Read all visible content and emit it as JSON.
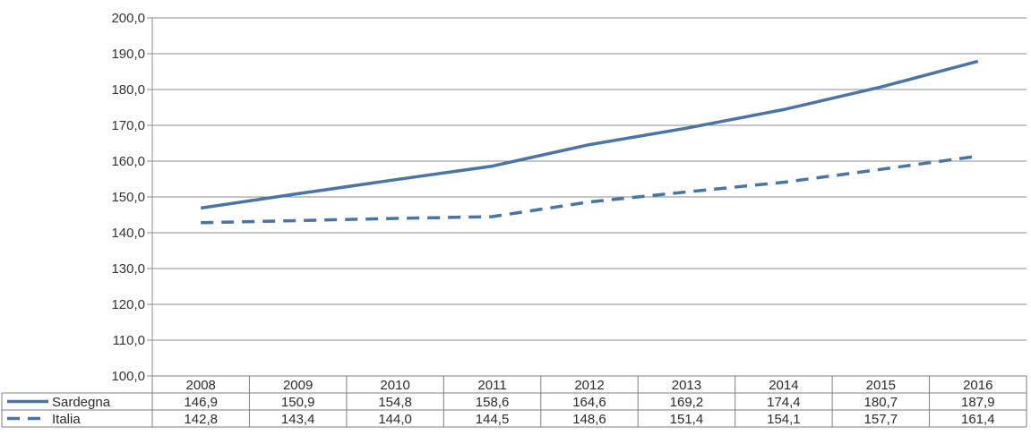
{
  "chart_data": {
    "type": "line",
    "x": [
      "2008",
      "2009",
      "2010",
      "2011",
      "2012",
      "2013",
      "2014",
      "2015",
      "2016"
    ],
    "ylim": [
      100,
      200
    ],
    "yticks": [
      "100,0",
      "110,0",
      "120,0",
      "130,0",
      "140,0",
      "150,0",
      "160,0",
      "170,0",
      "180,0",
      "190,0",
      "200,0"
    ],
    "grid": true,
    "legend_placement": "bottom data table",
    "series": [
      {
        "name": "Sardegna",
        "style": "solid",
        "color": "#4a74a3",
        "values": [
          146.9,
          150.9,
          154.8,
          158.6,
          164.6,
          169.2,
          174.4,
          180.7,
          187.9
        ],
        "labels": [
          "146,9",
          "150,9",
          "154,8",
          "158,6",
          "164,6",
          "169,2",
          "174,4",
          "180,7",
          "187,9"
        ]
      },
      {
        "name": "Italia",
        "style": "dashed",
        "color": "#4a74a3",
        "values": [
          142.8,
          143.4,
          144.0,
          144.5,
          148.6,
          151.4,
          154.1,
          157.7,
          161.4
        ],
        "labels": [
          "142,8",
          "143,4",
          "144,0",
          "144,5",
          "148,6",
          "151,4",
          "154,1",
          "157,7",
          "161,4"
        ]
      }
    ]
  }
}
